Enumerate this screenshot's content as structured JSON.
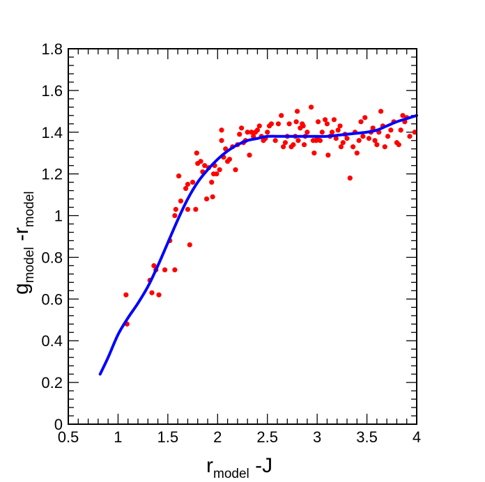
{
  "chart_data": {
    "type": "scatter",
    "xlabel": {
      "main": "r",
      "sub": "model",
      "suffix": " -J"
    },
    "ylabel": {
      "main": "g",
      "sub": "model",
      "mid": " -r",
      "sub2": "model"
    },
    "xlim": [
      0.5,
      4
    ],
    "ylim": [
      0,
      1.8
    ],
    "xticks": [
      "0.5",
      "1",
      "1.5",
      "2",
      "2.5",
      "3",
      "3.5",
      "4"
    ],
    "yticks": [
      "0",
      "0.2",
      "0.4",
      "0.6",
      "0.8",
      "1",
      "1.2",
      "1.4",
      "1.6",
      "1.8"
    ],
    "grid": false,
    "series": [
      {
        "name": "data points",
        "kind": "scatter",
        "color": "#ff0000",
        "points": [
          [
            1.08,
            0.62
          ],
          [
            1.09,
            0.48
          ],
          [
            1.32,
            0.69
          ],
          [
            1.34,
            0.63
          ],
          [
            1.36,
            0.76
          ],
          [
            1.38,
            0.74
          ],
          [
            1.41,
            0.62
          ],
          [
            1.47,
            0.74
          ],
          [
            1.52,
            0.88
          ],
          [
            1.57,
            1.0
          ],
          [
            1.57,
            0.74
          ],
          [
            1.58,
            1.03
          ],
          [
            1.61,
            1.19
          ],
          [
            1.63,
            1.07
          ],
          [
            1.68,
            1.13
          ],
          [
            1.7,
            1.03
          ],
          [
            1.7,
            1.15
          ],
          [
            1.72,
            0.86
          ],
          [
            1.75,
            1.16
          ],
          [
            1.78,
            1.03
          ],
          [
            1.79,
            1.3
          ],
          [
            1.8,
            1.25
          ],
          [
            1.83,
            1.26
          ],
          [
            1.85,
            1.21
          ],
          [
            1.87,
            1.24
          ],
          [
            1.89,
            1.08
          ],
          [
            1.91,
            1.23
          ],
          [
            1.94,
            1.16
          ],
          [
            1.95,
            1.09
          ],
          [
            1.96,
            1.2
          ],
          [
            1.97,
            1.24
          ],
          [
            1.99,
            1.2
          ],
          [
            2.02,
            1.22
          ],
          [
            2.04,
            1.36
          ],
          [
            2.04,
            1.41
          ],
          [
            2.06,
            1.28
          ],
          [
            2.08,
            1.32
          ],
          [
            2.1,
            1.26
          ],
          [
            2.12,
            1.27
          ],
          [
            2.15,
            1.33
          ],
          [
            2.18,
            1.22
          ],
          [
            2.2,
            1.34
          ],
          [
            2.22,
            1.39
          ],
          [
            2.24,
            1.42
          ],
          [
            2.26,
            1.35
          ],
          [
            2.28,
            1.36
          ],
          [
            2.3,
            1.4
          ],
          [
            2.32,
            1.29
          ],
          [
            2.34,
            1.4
          ],
          [
            2.36,
            1.38
          ],
          [
            2.38,
            1.4
          ],
          [
            2.4,
            1.41
          ],
          [
            2.42,
            1.43
          ],
          [
            2.44,
            1.38
          ],
          [
            2.46,
            1.36
          ],
          [
            2.48,
            1.37
          ],
          [
            2.5,
            1.4
          ],
          [
            2.52,
            1.43
          ],
          [
            2.54,
            1.44
          ],
          [
            2.58,
            1.36
          ],
          [
            2.61,
            1.44
          ],
          [
            2.64,
            1.48
          ],
          [
            2.66,
            1.33
          ],
          [
            2.68,
            1.35
          ],
          [
            2.7,
            1.38
          ],
          [
            2.72,
            1.44
          ],
          [
            2.74,
            1.33
          ],
          [
            2.76,
            1.34
          ],
          [
            2.78,
            1.38
          ],
          [
            2.79,
            1.45
          ],
          [
            2.8,
            1.5
          ],
          [
            2.81,
            1.36
          ],
          [
            2.83,
            1.42
          ],
          [
            2.85,
            1.44
          ],
          [
            2.86,
            1.43
          ],
          [
            2.87,
            1.34
          ],
          [
            2.88,
            1.38
          ],
          [
            2.9,
            1.4
          ],
          [
            2.94,
            1.52
          ],
          [
            2.96,
            1.36
          ],
          [
            2.97,
            1.3
          ],
          [
            2.99,
            1.36
          ],
          [
            3.0,
            1.37
          ],
          [
            3.01,
            1.45
          ],
          [
            3.03,
            1.36
          ],
          [
            3.05,
            1.4
          ],
          [
            3.08,
            1.46
          ],
          [
            3.1,
            1.44
          ],
          [
            3.11,
            1.29
          ],
          [
            3.13,
            1.38
          ],
          [
            3.15,
            1.4
          ],
          [
            3.17,
            1.46
          ],
          [
            3.19,
            1.37
          ],
          [
            3.21,
            1.41
          ],
          [
            3.23,
            1.43
          ],
          [
            3.24,
            1.33
          ],
          [
            3.26,
            1.35
          ],
          [
            3.28,
            1.39
          ],
          [
            3.3,
            1.37
          ],
          [
            3.33,
            1.18
          ],
          [
            3.36,
            1.33
          ],
          [
            3.38,
            1.4
          ],
          [
            3.4,
            1.3
          ],
          [
            3.42,
            1.36
          ],
          [
            3.44,
            1.45
          ],
          [
            3.46,
            1.38
          ],
          [
            3.48,
            1.47
          ],
          [
            3.52,
            1.37
          ],
          [
            3.54,
            1.4
          ],
          [
            3.56,
            1.42
          ],
          [
            3.58,
            1.36
          ],
          [
            3.6,
            1.34
          ],
          [
            3.62,
            1.4
          ],
          [
            3.64,
            1.5
          ],
          [
            3.66,
            1.43
          ],
          [
            3.68,
            1.33
          ],
          [
            3.71,
            1.38
          ],
          [
            3.74,
            1.41
          ],
          [
            3.77,
            1.45
          ],
          [
            3.8,
            1.35
          ],
          [
            3.82,
            1.34
          ],
          [
            3.84,
            1.41
          ],
          [
            3.86,
            1.48
          ],
          [
            3.88,
            1.45
          ],
          [
            3.9,
            1.47
          ],
          [
            3.93,
            1.38
          ],
          [
            3.98,
            1.4
          ]
        ]
      },
      {
        "name": "fit curve",
        "kind": "line",
        "color": "#0000ff",
        "x": [
          0.82,
          0.9,
          1.0,
          1.1,
          1.2,
          1.3,
          1.4,
          1.5,
          1.6,
          1.7,
          1.8,
          1.9,
          2.0,
          2.1,
          2.2,
          2.3,
          2.4,
          2.5,
          2.6,
          2.7,
          2.8,
          2.9,
          3.0,
          3.1,
          3.2,
          3.3,
          3.4,
          3.5,
          3.6,
          3.7,
          3.8,
          3.9,
          4.0
        ],
        "y": [
          0.24,
          0.32,
          0.43,
          0.51,
          0.58,
          0.66,
          0.76,
          0.87,
          0.98,
          1.08,
          1.16,
          1.22,
          1.27,
          1.31,
          1.34,
          1.36,
          1.37,
          1.38,
          1.38,
          1.38,
          1.38,
          1.38,
          1.38,
          1.38,
          1.385,
          1.39,
          1.395,
          1.4,
          1.41,
          1.43,
          1.45,
          1.465,
          1.48
        ]
      }
    ]
  }
}
